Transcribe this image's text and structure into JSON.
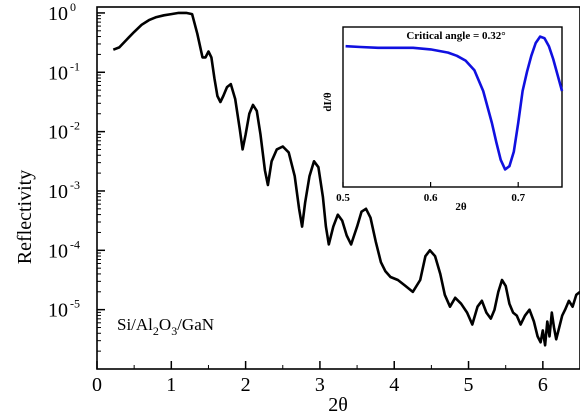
{
  "chart_data": [
    {
      "type": "line",
      "name": "main-reflectivity",
      "xlabel": "2θ",
      "ylabel": "Reflectivity",
      "annotation": {
        "text": "Si/Al",
        "sub1": "2",
        "mid": "O",
        "sub2": "3",
        "tail": "/GaN"
      },
      "xlim": [
        0,
        6.5
      ],
      "ylim_log10": [
        -6,
        0.1
      ],
      "yscale": "log",
      "x_ticks": [
        "0",
        "1",
        "2",
        "3",
        "4",
        "5",
        "6"
      ],
      "y_ticks": [
        {
          "base": "10",
          "exp": "0"
        },
        {
          "base": "10",
          "exp": "-1"
        },
        {
          "base": "10",
          "exp": "-2"
        },
        {
          "base": "10",
          "exp": "-3"
        },
        {
          "base": "10",
          "exp": "-4"
        },
        {
          "base": "10",
          "exp": "-5"
        }
      ],
      "color": "#000000",
      "x": [
        0.22,
        0.3,
        0.4,
        0.5,
        0.6,
        0.7,
        0.8,
        0.9,
        1.0,
        1.1,
        1.2,
        1.28,
        1.35,
        1.42,
        1.46,
        1.5,
        1.54,
        1.58,
        1.62,
        1.66,
        1.7,
        1.75,
        1.8,
        1.86,
        1.92,
        1.96,
        2.0,
        2.05,
        2.1,
        2.15,
        2.2,
        2.26,
        2.3,
        2.35,
        2.42,
        2.5,
        2.58,
        2.66,
        2.72,
        2.76,
        2.8,
        2.86,
        2.92,
        2.98,
        3.04,
        3.08,
        3.12,
        3.18,
        3.24,
        3.3,
        3.36,
        3.42,
        3.46,
        3.5,
        3.56,
        3.62,
        3.68,
        3.75,
        3.82,
        3.88,
        3.95,
        4.05,
        4.15,
        4.25,
        4.35,
        4.42,
        4.48,
        4.55,
        4.62,
        4.68,
        4.75,
        4.82,
        4.9,
        4.98,
        5.05,
        5.12,
        5.18,
        5.24,
        5.3,
        5.35,
        5.4,
        5.45,
        5.5,
        5.55,
        5.6,
        5.65,
        5.7,
        5.76,
        5.82,
        5.88,
        5.93,
        5.97,
        6.0,
        6.03,
        6.06,
        6.09,
        6.12,
        6.15,
        6.18,
        6.22,
        6.26,
        6.3,
        6.35,
        6.4,
        6.45,
        6.5
      ],
      "y_log10": [
        -0.62,
        -0.58,
        -0.45,
        -0.32,
        -0.2,
        -0.12,
        -0.07,
        -0.04,
        -0.02,
        0.0,
        0.0,
        -0.02,
        -0.35,
        -0.75,
        -0.75,
        -0.65,
        -0.75,
        -1.1,
        -1.4,
        -1.5,
        -1.4,
        -1.25,
        -1.2,
        -1.45,
        -1.95,
        -2.3,
        -2.05,
        -1.7,
        -1.55,
        -1.65,
        -2.05,
        -2.65,
        -2.9,
        -2.5,
        -2.3,
        -2.25,
        -2.35,
        -2.75,
        -3.3,
        -3.6,
        -3.2,
        -2.75,
        -2.5,
        -2.6,
        -3.1,
        -3.6,
        -3.9,
        -3.6,
        -3.4,
        -3.5,
        -3.75,
        -3.9,
        -3.75,
        -3.6,
        -3.35,
        -3.3,
        -3.45,
        -3.85,
        -4.2,
        -4.35,
        -4.45,
        -4.5,
        -4.6,
        -4.7,
        -4.5,
        -4.1,
        -4.0,
        -4.1,
        -4.4,
        -4.75,
        -4.95,
        -4.8,
        -4.9,
        -5.05,
        -5.25,
        -4.95,
        -4.85,
        -5.05,
        -5.15,
        -5.0,
        -4.7,
        -4.5,
        -4.6,
        -4.9,
        -5.05,
        -5.1,
        -5.25,
        -5.1,
        -5.0,
        -5.2,
        -5.45,
        -5.55,
        -5.35,
        -5.6,
        -5.2,
        -5.45,
        -5.05,
        -5.3,
        -5.5,
        -5.3,
        -5.1,
        -5.0,
        -4.85,
        -4.95,
        -4.75,
        -4.7
      ]
    },
    {
      "type": "line",
      "name": "inset-derivative",
      "title": "Critical angle = 0.32°",
      "xlabel": "2θ",
      "ylabel": "dI/θ",
      "xlim": [
        0.5,
        0.75
      ],
      "ylim": [
        0,
        1
      ],
      "x_ticks": [
        "0.5",
        "0.6",
        "0.7"
      ],
      "color": "#1010e0",
      "x": [
        0.503,
        0.52,
        0.54,
        0.56,
        0.58,
        0.6,
        0.61,
        0.62,
        0.63,
        0.64,
        0.65,
        0.66,
        0.67,
        0.675,
        0.68,
        0.685,
        0.69,
        0.695,
        0.7,
        0.705,
        0.71,
        0.715,
        0.72,
        0.725,
        0.73,
        0.735,
        0.74,
        0.745,
        0.75
      ],
      "y": [
        0.88,
        0.875,
        0.87,
        0.87,
        0.87,
        0.86,
        0.85,
        0.84,
        0.82,
        0.79,
        0.73,
        0.6,
        0.4,
        0.28,
        0.17,
        0.11,
        0.13,
        0.22,
        0.4,
        0.6,
        0.72,
        0.82,
        0.9,
        0.94,
        0.93,
        0.88,
        0.8,
        0.7,
        0.6
      ]
    }
  ]
}
